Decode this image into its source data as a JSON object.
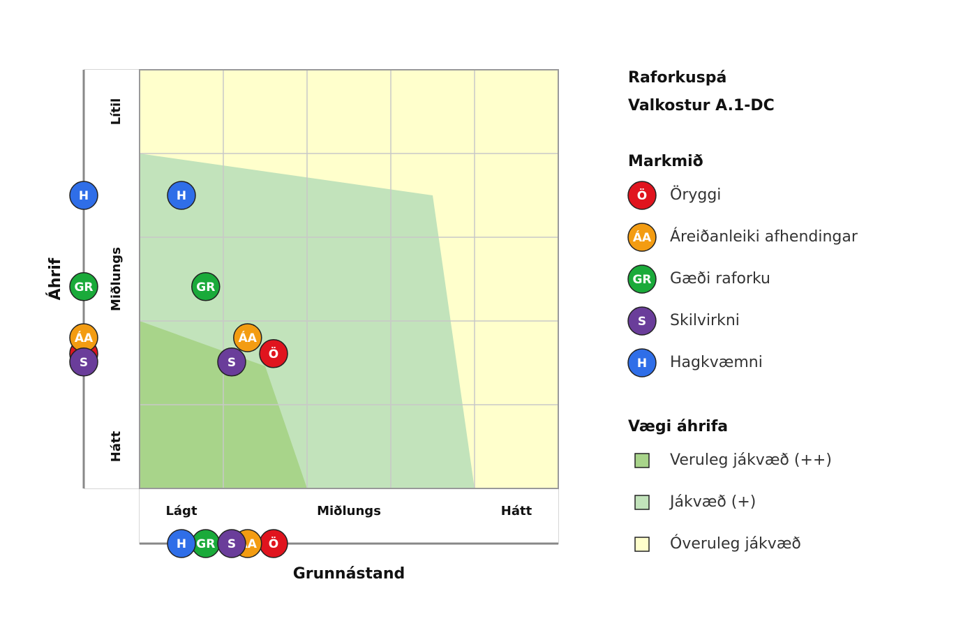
{
  "chart_data": {
    "type": "scatter",
    "title": "Raforkuspá",
    "subtitle": "Valkostur A.1-DC",
    "x_label": "Grunnástand",
    "y_label": "Áhrif",
    "xlim": [
      0,
      5
    ],
    "ylim": [
      0,
      5
    ],
    "xgrid": [
      0,
      1,
      2,
      3,
      4,
      5
    ],
    "ygrid": [
      0,
      1,
      2,
      3,
      4,
      5
    ],
    "xticks": [
      {
        "value": 0.5,
        "label": "Lágt"
      },
      {
        "value": 2.5,
        "label": "Miðlungs"
      },
      {
        "value": 4.5,
        "label": "Hátt"
      }
    ],
    "yticks": [
      {
        "value": 0.5,
        "label": "Hátt"
      },
      {
        "value": 2.5,
        "label": "Miðlungs"
      },
      {
        "value": 4.5,
        "label": "Lítil"
      }
    ],
    "legend_title": "Markmið",
    "series": [
      {
        "name": "Öryggi",
        "label": "Ö",
        "color": "#e0141e",
        "x": 1.6,
        "y": 1.61
      },
      {
        "name": "Áreiðanleiki afhendingar",
        "label": "ÁA",
        "color": "#f39c12",
        "x": 1.29,
        "y": 1.8
      },
      {
        "name": "Gæði raforku",
        "label": "GR",
        "color": "#1aaa3a",
        "x": 0.79,
        "y": 2.41
      },
      {
        "name": "Skilvirkni",
        "label": "S",
        "color": "#6a3d9a",
        "x": 1.1,
        "y": 1.51
      },
      {
        "name": "Hagkvæmni",
        "label": "H",
        "color": "#2f6ee8",
        "x": 0.5,
        "y": 3.5
      }
    ],
    "zones_title": "Vægi áhrifa",
    "zones": [
      {
        "name": "Veruleg jákvæð (++)",
        "color": "#a8d48a",
        "x": [
          0,
          1.5,
          2,
          0
        ],
        "y": [
          2,
          1.46,
          0,
          0
        ]
      },
      {
        "name": "Jákvæð (+)",
        "color": "#c2e3bb",
        "x": [
          0,
          3.5,
          4,
          0
        ],
        "y": [
          4,
          3.5,
          0,
          0
        ]
      },
      {
        "name": "Óveruleg jákvæð",
        "color": "#ffffcc",
        "x": [
          0,
          5,
          5,
          0
        ],
        "y": [
          5,
          5,
          0,
          0
        ]
      }
    ]
  }
}
